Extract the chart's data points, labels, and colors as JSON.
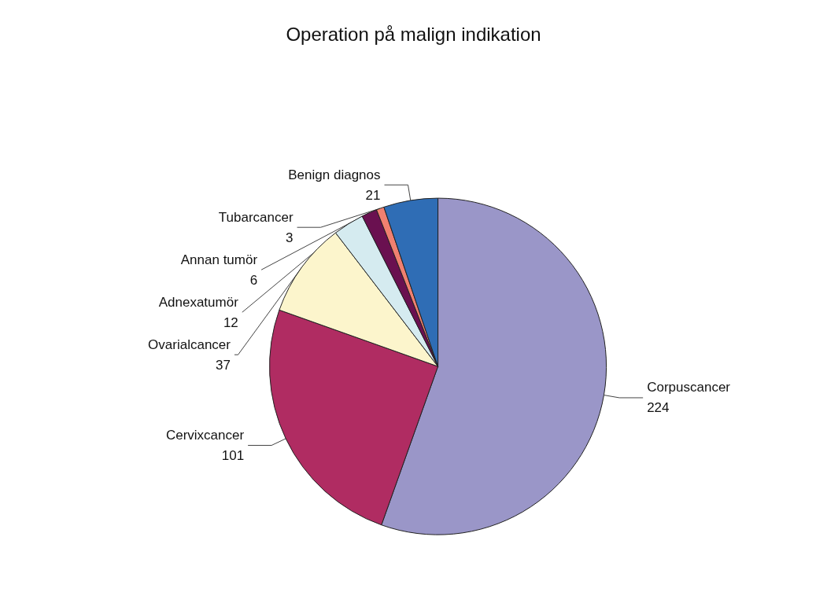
{
  "chart_data": {
    "type": "pie",
    "title": "Operation på malign indikation",
    "categories": [
      "Corpuscancer",
      "Cervixcancer",
      "Ovarialcancer",
      "Adnexatumör",
      "Annan tumör",
      "Tubarcancer",
      "Benign diagnos"
    ],
    "values": [
      224,
      101,
      37,
      12,
      6,
      3,
      21
    ],
    "colors": [
      "#9a96c8",
      "#b02c62",
      "#fcf5cc",
      "#d5ebf0",
      "#6a1050",
      "#f08070",
      "#2f6db5"
    ],
    "data_labels": true
  }
}
